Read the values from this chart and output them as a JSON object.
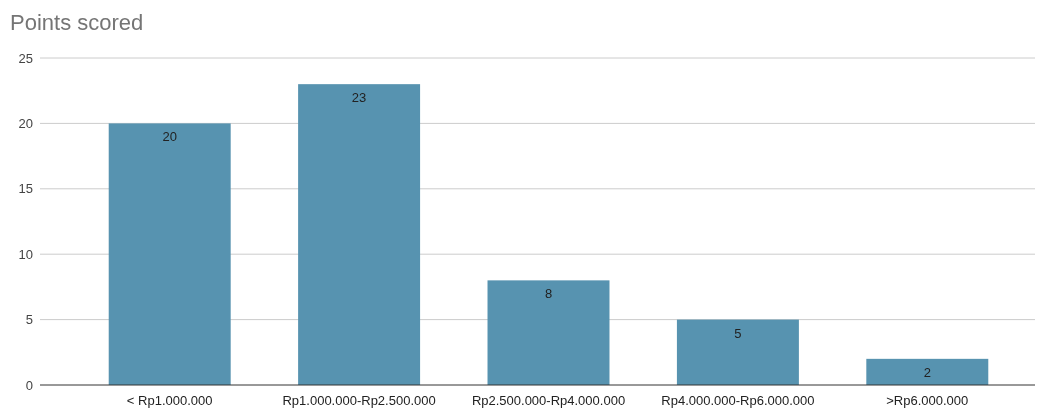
{
  "chart_data": {
    "type": "bar",
    "title": "Points scored",
    "categories": [
      "< Rp1.000.000",
      "Rp1.000.000-Rp2.500.000",
      "Rp2.500.000-Rp4.000.000",
      "Rp4.000.000-Rp6.000.000",
      ">Rp6.000.000"
    ],
    "values": [
      20,
      23,
      8,
      5,
      2
    ],
    "color": "#5793b0",
    "ylim": [
      0,
      25
    ],
    "yticks": [
      0,
      5,
      10,
      15,
      20,
      25
    ],
    "grid": "y",
    "data_labels": true
  }
}
